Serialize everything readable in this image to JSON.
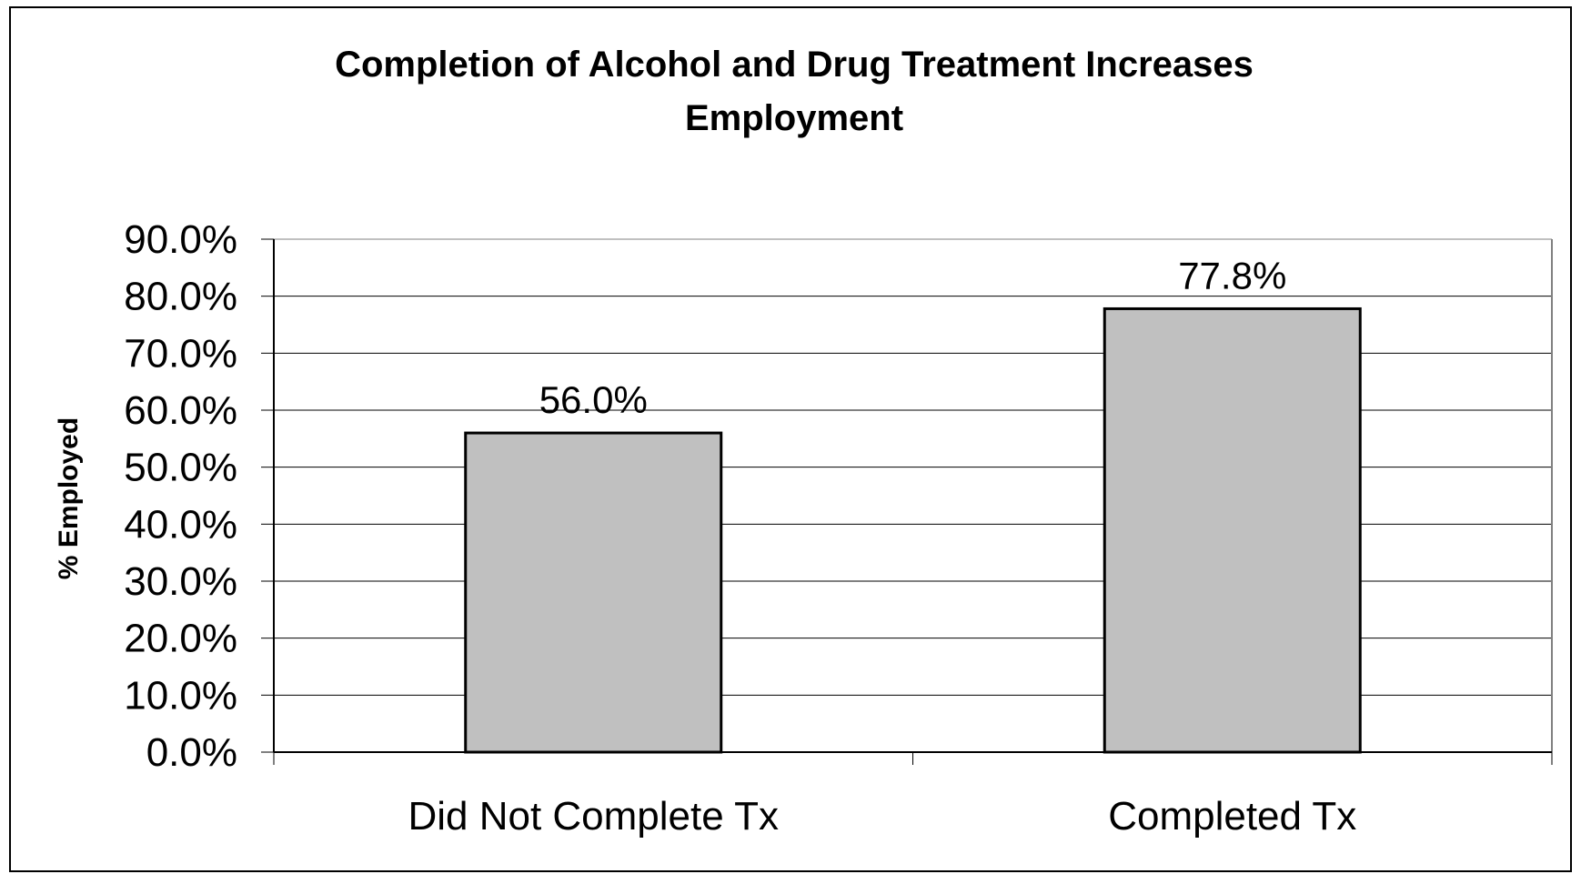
{
  "chart_data": {
    "type": "bar",
    "title_lines": [
      "Completion of Alcohol and Drug Treatment Increases",
      "Employment"
    ],
    "xlabel": "",
    "ylabel": "% Employed",
    "categories": [
      "Did Not Complete Tx",
      "Completed Tx"
    ],
    "values": [
      56.0,
      77.8
    ],
    "value_labels": [
      "56.0%",
      "77.8%"
    ],
    "ylim": [
      0,
      90
    ],
    "yticks": [
      0,
      10,
      20,
      30,
      40,
      50,
      60,
      70,
      80,
      90
    ],
    "ytick_labels": [
      "0.0%",
      "10.0%",
      "20.0%",
      "30.0%",
      "40.0%",
      "50.0%",
      "60.0%",
      "70.0%",
      "80.0%",
      "90.0%"
    ],
    "grid": true,
    "legend": "none",
    "bar_color": "#c0c0c0",
    "bar_edge_color": "#000000",
    "grid_color": "#808080"
  }
}
